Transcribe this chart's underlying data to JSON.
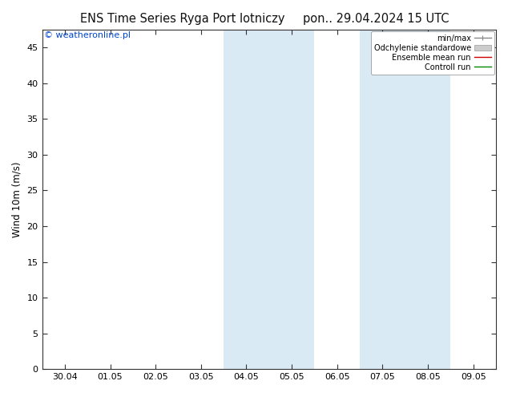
{
  "title_left": "ENS Time Series Ryga Port lotniczy",
  "title_right": "pon.. 29.04.2024 15 UTC",
  "ylabel": "Wind 10m (m/s)",
  "watermark": "© weatheronline.pl",
  "xticklabels": [
    "30.04",
    "01.05",
    "02.05",
    "03.05",
    "04.05",
    "05.05",
    "06.05",
    "07.05",
    "08.05",
    "09.05"
  ],
  "xtick_positions": [
    0,
    1,
    2,
    3,
    4,
    5,
    6,
    7,
    8,
    9
  ],
  "ylim": [
    0,
    47.5
  ],
  "yticks": [
    0,
    5,
    10,
    15,
    20,
    25,
    30,
    35,
    40,
    45
  ],
  "xlim": [
    -0.5,
    9.5
  ],
  "shading_bands": [
    [
      3.5,
      4.5
    ],
    [
      4.5,
      5.5
    ],
    [
      6.5,
      7.5
    ],
    [
      7.5,
      8.5
    ]
  ],
  "shading_color": "#daeaf5",
  "bg_color": "#ffffff",
  "legend_items": [
    {
      "label": "min/max",
      "color": "#888888",
      "lw": 1.0,
      "linestyle": "-"
    },
    {
      "label": "Odchylenie standardowe",
      "color": "#cccccc",
      "lw": 8
    },
    {
      "label": "Ensemble mean run",
      "color": "#cc0000",
      "lw": 1.0,
      "linestyle": "-"
    },
    {
      "label": "Controll run",
      "color": "#008800",
      "lw": 1.0,
      "linestyle": "-"
    }
  ],
  "title_fontsize": 10.5,
  "axis_fontsize": 8.5,
  "watermark_color": "#0044cc",
  "watermark_fontsize": 8.0,
  "tick_label_fontsize": 8.0
}
